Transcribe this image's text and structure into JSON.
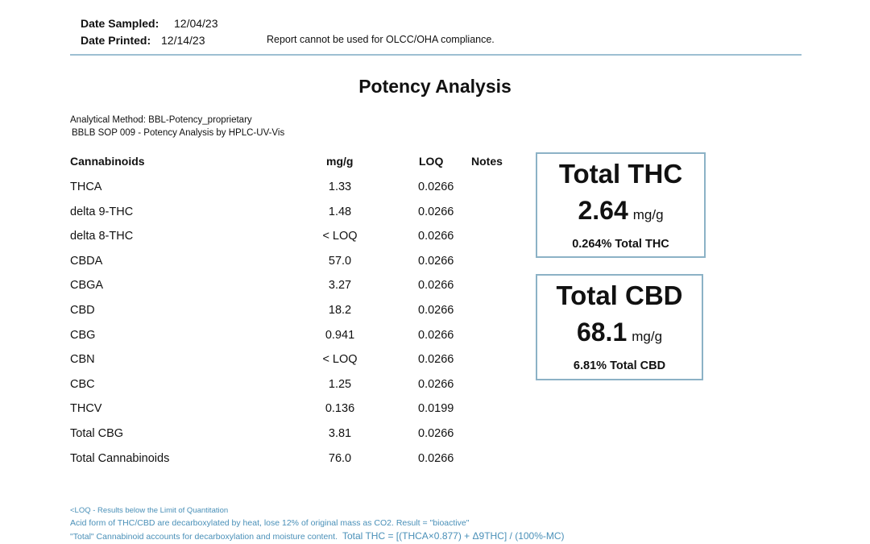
{
  "header": {
    "date_sampled_label": "Date Sampled:",
    "date_sampled": "12/04/23",
    "date_printed_label": "Date Printed:",
    "date_printed": "12/14/23",
    "disclaimer": "Report cannot be used for OLCC/OHA compliance."
  },
  "title": "Potency Analysis",
  "method": {
    "line1": "Analytical Method: BBL-Potency_proprietary",
    "line2": "BBLB SOP 009 - Potency Analysis by HPLC-UV-Vis"
  },
  "table": {
    "columns": [
      "Cannabinoids",
      "mg/g",
      "LOQ",
      "Notes"
    ],
    "rows": [
      {
        "name": "THCA",
        "mg": "1.33",
        "loq": "0.0266"
      },
      {
        "name": "delta 9-THC",
        "mg": "1.48",
        "loq": "0.0266"
      },
      {
        "name": "delta 8-THC",
        "mg": "< LOQ",
        "loq": "0.0266"
      },
      {
        "name": "CBDA",
        "mg": "57.0",
        "loq": "0.0266"
      },
      {
        "name": "CBGA",
        "mg": "3.27",
        "loq": "0.0266"
      },
      {
        "name": "CBD",
        "mg": "18.2",
        "loq": "0.0266"
      },
      {
        "name": "CBG",
        "mg": "0.941",
        "loq": "0.0266"
      },
      {
        "name": "CBN",
        "mg": "< LOQ",
        "loq": "0.0266"
      },
      {
        "name": "CBC",
        "mg": "1.25",
        "loq": "0.0266"
      },
      {
        "name": "THCV",
        "mg": "0.136",
        "loq": "0.0199"
      },
      {
        "name": "Total CBG",
        "mg": "3.81",
        "loq": "0.0266"
      },
      {
        "name": "Total Cannabinoids",
        "mg": "76.0",
        "loq": "0.0266"
      }
    ]
  },
  "total_thc": {
    "title": "Total THC",
    "value": "2.64",
    "unit": "mg/g",
    "percent": "0.264% Total THC"
  },
  "total_cbd": {
    "title": "Total CBD",
    "value": "68.1",
    "unit": "mg/g",
    "percent": "6.81% Total CBD"
  },
  "footnotes": {
    "line1": "<LOQ - Results below the Limit of Quantitation",
    "line2": "Acid form of THC/CBD are decarboxylated by heat, lose 12% of original mass as CO2. Result = \"bioactive\"",
    "line3": "\"Total\" Cannabinoid  accounts for decarboxylation and moisture content.",
    "formula": "Total THC = [(THCA×0.877) + Δ9THC] / (100%-MC)"
  },
  "colors": {
    "rule": "#9dbfd2",
    "box_border": "#8cb2c6",
    "footnote_text": "#4a90b8"
  }
}
